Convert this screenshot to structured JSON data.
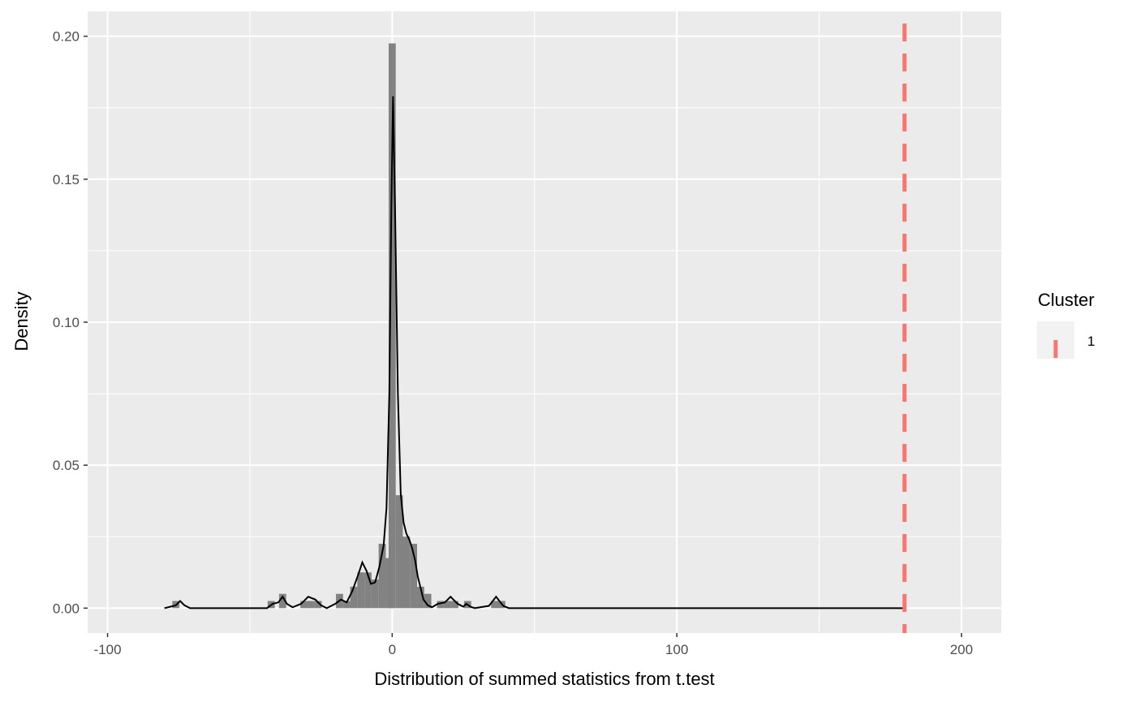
{
  "chart_data": {
    "type": "histogram",
    "xlabel": "Distribution of summed statistics from t.test",
    "ylabel": "Density",
    "xlim": [
      -107,
      214
    ],
    "ylim": [
      -0.0087,
      0.2087
    ],
    "x_ticks": [
      -100,
      0,
      100,
      200
    ],
    "x_tick_labels": [
      "-100",
      "0",
      "100",
      "200"
    ],
    "x_minor_ticks": [
      -50,
      50,
      150
    ],
    "y_ticks": [
      0,
      0.05,
      0.1,
      0.15,
      0.2
    ],
    "y_tick_labels": [
      "0.00",
      "0.05",
      "0.10",
      "0.15",
      "0.20"
    ],
    "y_minor_ticks": [
      0.025,
      0.075,
      0.125,
      0.175
    ],
    "grid": true,
    "bin_width": 2.5,
    "histogram": [
      {
        "x": -76,
        "density": 0.0025
      },
      {
        "x": -42.5,
        "density": 0.0025
      },
      {
        "x": -38.5,
        "density": 0.005
      },
      {
        "x": -31,
        "density": 0.0025
      },
      {
        "x": -28.5,
        "density": 0.0025
      },
      {
        "x": -26,
        "density": 0.0025
      },
      {
        "x": -18.5,
        "density": 0.005
      },
      {
        "x": -16,
        "density": 0.0025
      },
      {
        "x": -13.5,
        "density": 0.0075
      },
      {
        "x": -11,
        "density": 0.0125
      },
      {
        "x": -8.5,
        "density": 0.0125
      },
      {
        "x": -6,
        "density": 0.01
      },
      {
        "x": -3.5,
        "density": 0.0225
      },
      {
        "x": -1,
        "density": 0.0175
      },
      {
        "x": 0,
        "density": 0.1975
      },
      {
        "x": 2.5,
        "density": 0.0395
      },
      {
        "x": 5,
        "density": 0.025
      },
      {
        "x": 7.5,
        "density": 0.0225
      },
      {
        "x": 10,
        "density": 0.0075
      },
      {
        "x": 12.5,
        "density": 0.005
      },
      {
        "x": 17,
        "density": 0.0025
      },
      {
        "x": 19.5,
        "density": 0.0025
      },
      {
        "x": 22,
        "density": 0.0025
      },
      {
        "x": 26.5,
        "density": 0.0025
      },
      {
        "x": 36,
        "density": 0.0025
      },
      {
        "x": 38.5,
        "density": 0.0025
      }
    ],
    "density_curve": [
      [
        -80,
        0
      ],
      [
        -76,
        0.001
      ],
      [
        -74.5,
        0.0025
      ],
      [
        -73,
        0.001
      ],
      [
        -71,
        0
      ],
      [
        -44,
        0
      ],
      [
        -42,
        0.0015
      ],
      [
        -40,
        0.002
      ],
      [
        -38.5,
        0.004
      ],
      [
        -37,
        0.0015
      ],
      [
        -35,
        0.0003
      ],
      [
        -32,
        0.0015
      ],
      [
        -29.5,
        0.004
      ],
      [
        -27,
        0.003
      ],
      [
        -25,
        0.001
      ],
      [
        -23,
        0
      ],
      [
        -20,
        0.0015
      ],
      [
        -18,
        0.003
      ],
      [
        -16,
        0.002
      ],
      [
        -14,
        0.006
      ],
      [
        -12,
        0.0115
      ],
      [
        -10.5,
        0.016
      ],
      [
        -9,
        0.013
      ],
      [
        -7.5,
        0.0085
      ],
      [
        -6,
        0.009
      ],
      [
        -4.5,
        0.0145
      ],
      [
        -3,
        0.022
      ],
      [
        -2,
        0.035
      ],
      [
        -1,
        0.075
      ],
      [
        -0.3,
        0.14
      ],
      [
        0.3,
        0.179
      ],
      [
        1,
        0.14
      ],
      [
        2,
        0.075
      ],
      [
        3,
        0.04
      ],
      [
        4,
        0.03
      ],
      [
        5,
        0.026
      ],
      [
        6,
        0.024
      ],
      [
        7,
        0.021
      ],
      [
        8,
        0.017
      ],
      [
        9,
        0.011
      ],
      [
        10,
        0.007
      ],
      [
        11,
        0.003
      ],
      [
        12.5,
        0.001
      ],
      [
        14,
        0.0003
      ],
      [
        16,
        0.0015
      ],
      [
        18.5,
        0.002
      ],
      [
        20.5,
        0.004
      ],
      [
        23,
        0.0015
      ],
      [
        25,
        0.0005
      ],
      [
        26,
        0.0015
      ],
      [
        27.5,
        0.0005
      ],
      [
        29,
        0
      ],
      [
        34,
        0.0008
      ],
      [
        36.5,
        0.004
      ],
      [
        39,
        0.0008
      ],
      [
        41,
        0
      ],
      [
        180,
        0
      ]
    ],
    "reference_line": {
      "x": 180,
      "cluster": "1",
      "color": "#F8766D",
      "style": "dashed"
    },
    "legend": {
      "title": "Cluster",
      "entries": [
        "1"
      ],
      "placement": "right"
    },
    "colors": {
      "panel": "#EBEBEB",
      "grid": "#FFFFFF",
      "bar": "#7F7F7F",
      "curve": "#000000",
      "ref_line": "#F8766D",
      "legend_key": "#F2F2F2"
    }
  }
}
